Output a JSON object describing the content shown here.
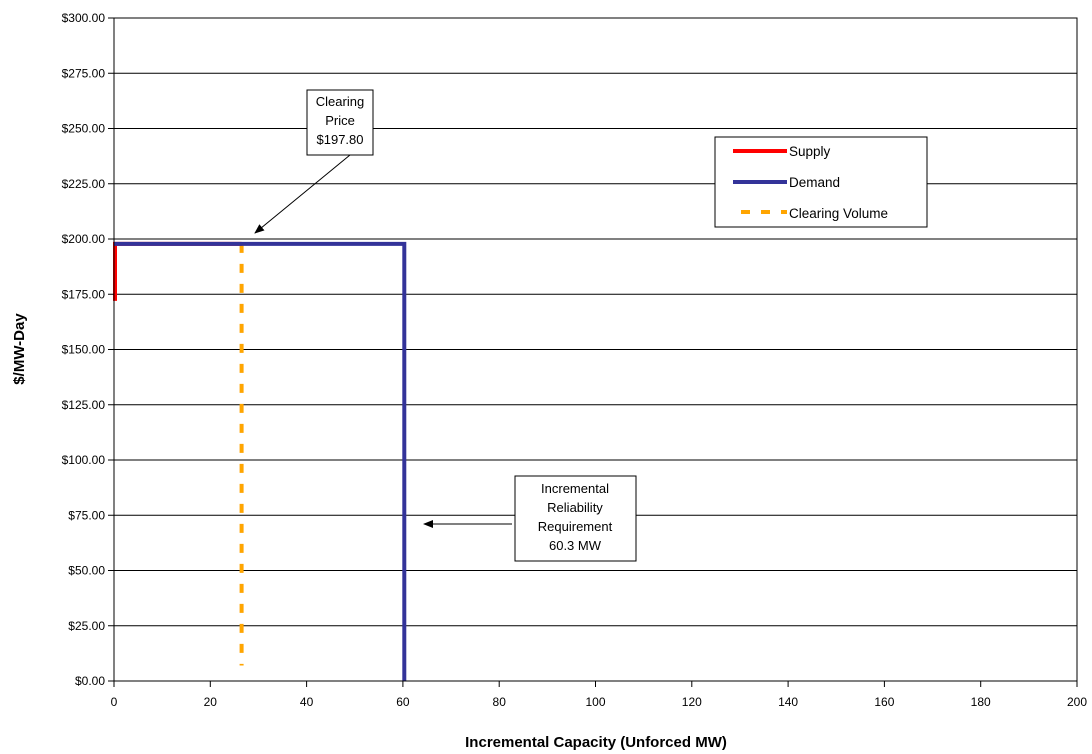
{
  "chart_data": {
    "type": "line",
    "xlabel": "Incremental Capacity (Unforced MW)",
    "ylabel": "$/MW-Day",
    "xlim": [
      0,
      200
    ],
    "ylim": [
      0,
      300
    ],
    "x_ticks": [
      0,
      20,
      40,
      60,
      80,
      100,
      120,
      140,
      160,
      180,
      200
    ],
    "y_ticks": [
      0,
      25,
      50,
      75,
      100,
      125,
      150,
      175,
      200,
      225,
      250,
      275,
      300
    ],
    "y_tick_labels": [
      "$0.00",
      "$25.00",
      "$50.00",
      "$75.00",
      "$100.00",
      "$125.00",
      "$150.00",
      "$175.00",
      "$200.00",
      "$225.00",
      "$250.00",
      "$275.00",
      "$300.00"
    ],
    "grid": "horizontal",
    "legend_position": "top-right",
    "series": [
      {
        "name": "Supply",
        "color": "#ff0000",
        "style": "solid",
        "x": [
          0.2,
          0.2,
          26.5
        ],
        "y": [
          172,
          197.8,
          197.8
        ]
      },
      {
        "name": "Demand",
        "color": "#333399",
        "style": "solid",
        "x": [
          0,
          60.3,
          60.3
        ],
        "y": [
          197.8,
          197.8,
          0
        ]
      },
      {
        "name": "Clearing Volume",
        "color": "#ffa500",
        "style": "dashed",
        "x": [
          26.5,
          26.5
        ],
        "y": [
          197.8,
          7
        ]
      }
    ],
    "annotations": [
      {
        "lines": [
          "Clearing",
          "Price",
          "$197.80"
        ],
        "points_to": [
          28,
          202
        ]
      },
      {
        "lines": [
          "Incremental",
          "Reliability",
          "Requirement",
          "60.3 MW"
        ],
        "points_to": [
          63,
          71
        ]
      }
    ]
  }
}
